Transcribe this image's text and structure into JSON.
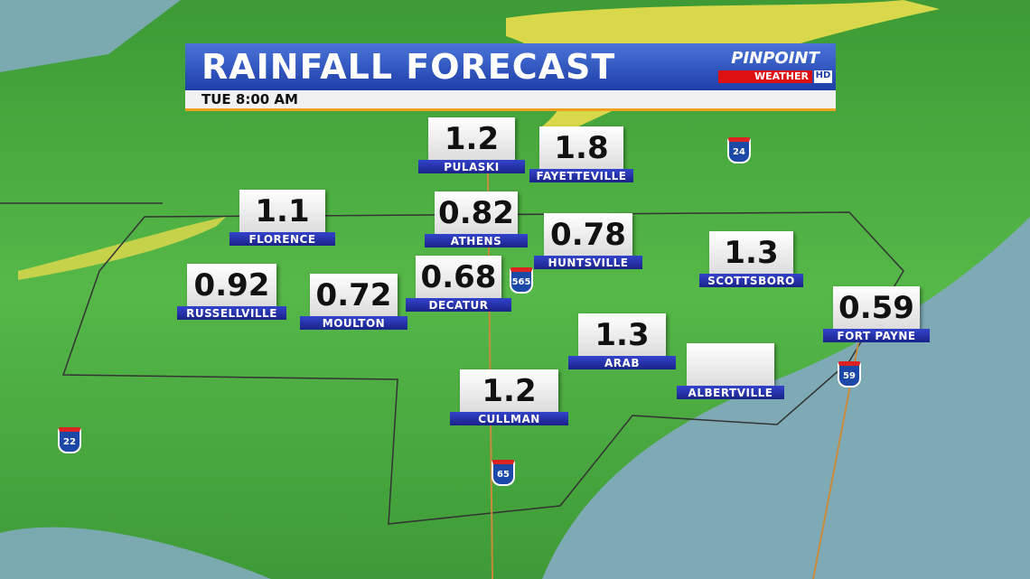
{
  "header": {
    "title": "RAINFALL FORECAST",
    "time": "TUE 8:00 AM",
    "brand": "PINPOINT",
    "brand_sub": "WEATHER",
    "brand_tag": "HD"
  },
  "cities": [
    {
      "name": "PULASKI",
      "value": "1.2"
    },
    {
      "name": "FAYETTEVILLE",
      "value": "1.8"
    },
    {
      "name": "FLORENCE",
      "value": "1.1"
    },
    {
      "name": "ATHENS",
      "value": "0.82"
    },
    {
      "name": "HUNTSVILLE",
      "value": "0.78"
    },
    {
      "name": "SCOTTSBORO",
      "value": "1.3"
    },
    {
      "name": "RUSSELLVILLE",
      "value": "0.92"
    },
    {
      "name": "MOULTON",
      "value": "0.72"
    },
    {
      "name": "DECATUR",
      "value": "0.68"
    },
    {
      "name": "FORT PAYNE",
      "value": "0.59"
    },
    {
      "name": "ARAB",
      "value": "1.3"
    },
    {
      "name": "ALBERTVILLE"
    },
    {
      "name": "CULLMAN",
      "value": "1.2"
    }
  ],
  "interstates": [
    "24",
    "565",
    "59",
    "22",
    "65"
  ]
}
